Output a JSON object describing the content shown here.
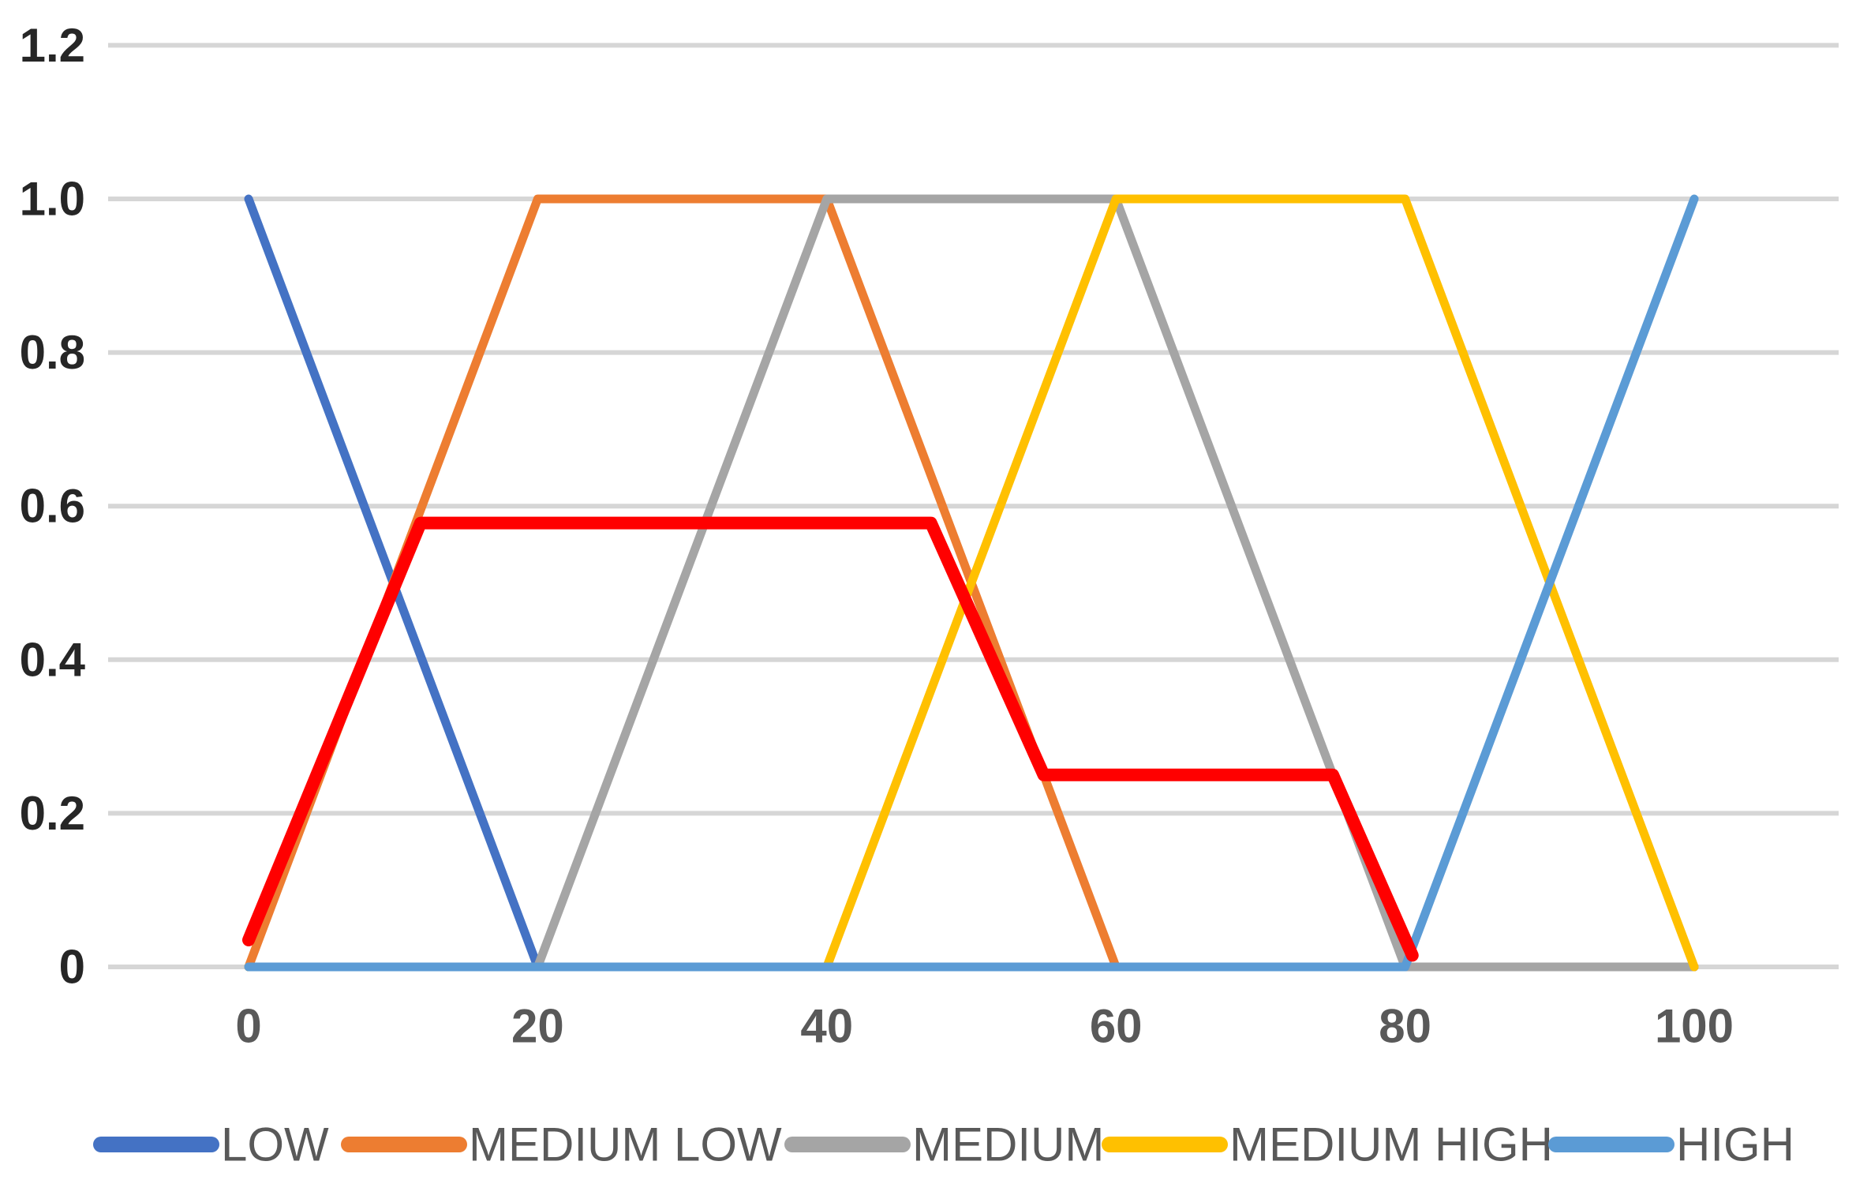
{
  "chart_data": {
    "type": "line",
    "title": "",
    "xlabel": "",
    "ylabel": "",
    "background": "#FFFFFF",
    "x_axis": {
      "range": [
        0,
        100
      ],
      "ticks": [
        {
          "v": 0,
          "label": "0"
        },
        {
          "v": 20,
          "label": "20"
        },
        {
          "v": 40,
          "label": "40"
        },
        {
          "v": 60,
          "label": "60"
        },
        {
          "v": 80,
          "label": "80"
        },
        {
          "v": 100,
          "label": "100"
        }
      ],
      "tick_color": "#595959"
    },
    "y_axis": {
      "range": [
        0,
        1.2
      ],
      "ticks": [
        {
          "v": 1.2,
          "label": "1.2"
        },
        {
          "v": 1.0,
          "label": "1.0"
        },
        {
          "v": 0.8,
          "label": "0.8"
        },
        {
          "v": 0.6,
          "label": "0.6"
        },
        {
          "v": 0.4,
          "label": "0.4"
        },
        {
          "v": 0.2,
          "label": "0.2"
        },
        {
          "v": 0,
          "label": "0"
        }
      ],
      "tick_color": "#262626"
    },
    "grid": {
      "horizontal": true,
      "vertical": false,
      "color": "#D6D6D6"
    },
    "series": [
      {
        "name": "LOW",
        "color": "#4472C4",
        "points": [
          [
            0,
            1
          ],
          [
            20,
            0
          ],
          [
            100,
            0
          ]
        ]
      },
      {
        "name": "MEDIUM LOW",
        "color": "#ED7D31",
        "points": [
          [
            0,
            0
          ],
          [
            20,
            1
          ],
          [
            40,
            1
          ],
          [
            60,
            0
          ],
          [
            100,
            0
          ]
        ]
      },
      {
        "name": "MEDIUM",
        "color": "#A5A5A5",
        "points": [
          [
            0,
            0
          ],
          [
            20,
            0
          ],
          [
            40,
            1
          ],
          [
            60,
            1
          ],
          [
            80,
            0
          ],
          [
            100,
            0
          ]
        ]
      },
      {
        "name": "MEDIUM HIGH",
        "color": "#FFC000",
        "points": [
          [
            0,
            0
          ],
          [
            40,
            0
          ],
          [
            60,
            1
          ],
          [
            80,
            1
          ],
          [
            100,
            0
          ]
        ]
      },
      {
        "name": "HIGH",
        "color": "#5B9BD5",
        "points": [
          [
            0,
            0
          ],
          [
            80,
            0
          ],
          [
            100,
            1
          ]
        ]
      }
    ],
    "aggregated_output": {
      "color": "#FF0000",
      "points": [
        [
          0,
          0.035
        ],
        [
          11.9,
          0.578
        ],
        [
          47.2,
          0.578
        ],
        [
          55,
          0.25
        ],
        [
          75,
          0.25
        ],
        [
          80.5,
          0.015
        ]
      ]
    },
    "legend": {
      "position": "bottom",
      "text_color": "#595959",
      "entries": [
        "LOW",
        "MEDIUM LOW",
        "MEDIUM",
        "MEDIUM HIGH",
        "HIGH"
      ]
    }
  }
}
